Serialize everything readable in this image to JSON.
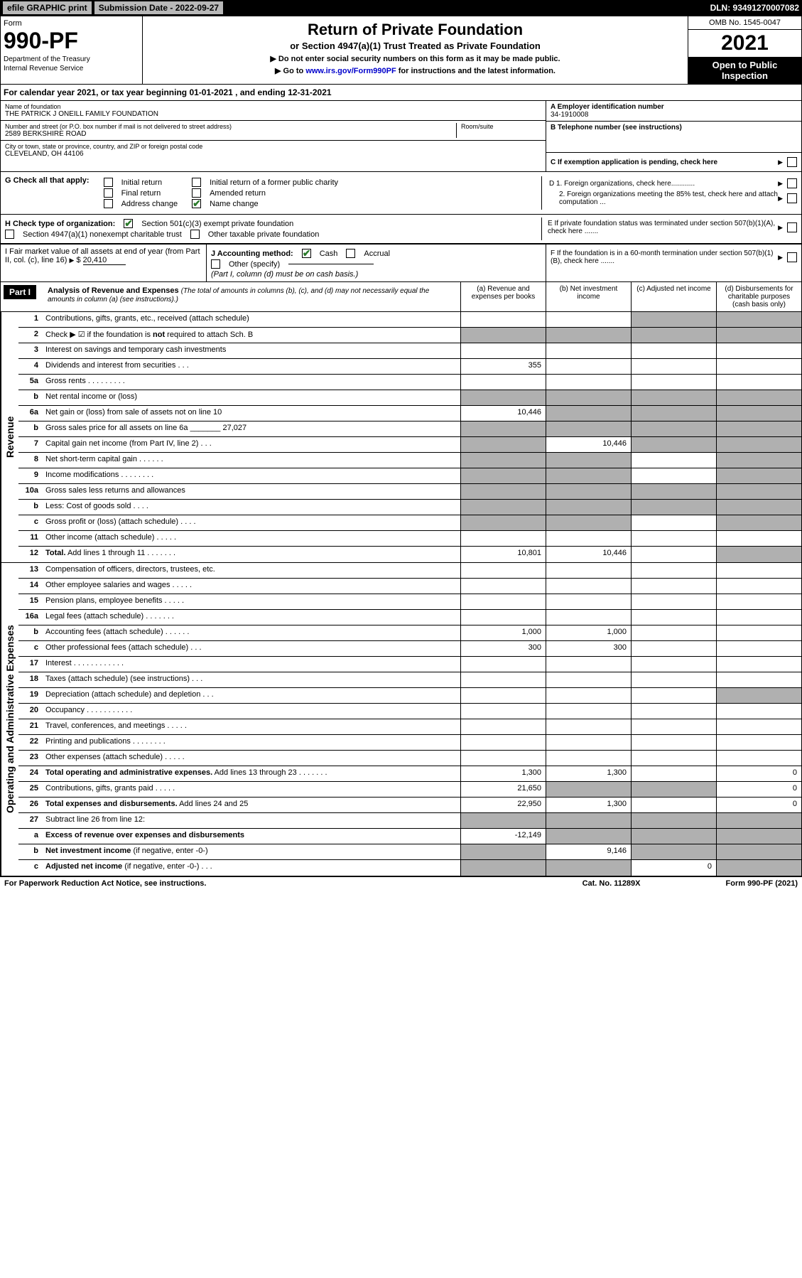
{
  "top": {
    "efile": "efile GRAPHIC print",
    "sub_label": "Submission Date - 2022-09-27",
    "dln": "DLN: 93491270007082"
  },
  "header": {
    "form_word": "Form",
    "form_num": "990-PF",
    "dept": "Department of the Treasury",
    "irs": "Internal Revenue Service",
    "title": "Return of Private Foundation",
    "subtitle": "or Section 4947(a)(1) Trust Treated as Private Foundation",
    "note1": "▶ Do not enter social security numbers on this form as it may be made public.",
    "note2_pre": "▶ Go to ",
    "note2_link": "www.irs.gov/Form990PF",
    "note2_post": " for instructions and the latest information.",
    "omb": "OMB No. 1545-0047",
    "year": "2021",
    "open": "Open to Public Inspection"
  },
  "calyear": {
    "text_pre": "For calendar year 2021, or tax year beginning ",
    "begin": "01-01-2021",
    "text_mid": " , and ending ",
    "end": "12-31-2021"
  },
  "info": {
    "name_label": "Name of foundation",
    "name": "THE PATRICK J ONEILL FAMILY FOUNDATION",
    "addr_label": "Number and street (or P.O. box number if mail is not delivered to street address)",
    "addr": "2589 BERKSHIRE ROAD",
    "room_label": "Room/suite",
    "city_label": "City or town, state or province, country, and ZIP or foreign postal code",
    "city": "CLEVELAND, OH  44106",
    "a_label": "A Employer identification number",
    "a_val": "34-1910008",
    "b_label": "B Telephone number (see instructions)",
    "c_label": "C If exemption application is pending, check here",
    "d1": "D 1. Foreign organizations, check here............",
    "d2": "2. Foreign organizations meeting the 85% test, check here and attach computation ...",
    "e_label": "E  If private foundation status was terminated under section 507(b)(1)(A), check here .......",
    "f_label": "F  If the foundation is in a 60-month termination under section 507(b)(1)(B), check here ......."
  },
  "g": {
    "label": "G Check all that apply:",
    "opts": [
      "Initial return",
      "Final return",
      "Address change",
      "Initial return of a former public charity",
      "Amended return",
      "Name change"
    ],
    "checked": [
      false,
      false,
      false,
      false,
      false,
      true
    ]
  },
  "h": {
    "label": "H Check type of organization:",
    "opt1": "Section 501(c)(3) exempt private foundation",
    "opt2": "Section 4947(a)(1) nonexempt charitable trust",
    "opt3": "Other taxable private foundation",
    "checked": [
      true,
      false,
      false
    ]
  },
  "i": {
    "label": "I Fair market value of all assets at end of year (from Part II, col. (c), line 16)",
    "val": "20,410"
  },
  "j": {
    "label": "J Accounting method:",
    "cash": "Cash",
    "accrual": "Accrual",
    "other": "Other (specify)",
    "note": "(Part I, column (d) must be on cash basis.)",
    "cash_checked": true
  },
  "part1": {
    "label": "Part I",
    "title": "Analysis of Revenue and Expenses",
    "title_note": "(The total of amounts in columns (b), (c), and (d) may not necessarily equal the amounts in column (a) (see instructions).)",
    "col_a": "(a) Revenue and expenses per books",
    "col_b": "(b) Net investment income",
    "col_c": "(c) Adjusted net income",
    "col_d": "(d) Disbursements for charitable purposes (cash basis only)"
  },
  "sections": {
    "revenue": "Revenue",
    "operating": "Operating and Administrative Expenses"
  },
  "rows": [
    {
      "n": "1",
      "d": "",
      "a": "",
      "b": "",
      "c": "",
      "sh": [
        "",
        "",
        "c",
        "d"
      ]
    },
    {
      "n": "2",
      "d": "",
      "a": "",
      "b": "",
      "c": "",
      "sh": [
        "a",
        "b",
        "c",
        "d"
      ]
    },
    {
      "n": "3",
      "d": "",
      "a": "",
      "b": "",
      "c": ""
    },
    {
      "n": "4",
      "d": "",
      "a": "355",
      "b": "",
      "c": ""
    },
    {
      "n": "5a",
      "d": "",
      "a": "",
      "b": "",
      "c": ""
    },
    {
      "n": "b",
      "d": "",
      "a": "",
      "b": "",
      "c": "",
      "sh": [
        "a",
        "b",
        "c",
        "d"
      ]
    },
    {
      "n": "6a",
      "d": "",
      "a": "10,446",
      "b": "",
      "c": "",
      "sh": [
        "",
        "b",
        "c",
        "d"
      ]
    },
    {
      "n": "b",
      "d": "",
      "a": "",
      "b": "",
      "c": "",
      "sh": [
        "a",
        "b",
        "c",
        "d"
      ]
    },
    {
      "n": "7",
      "d": "",
      "a": "",
      "b": "10,446",
      "c": "",
      "sh": [
        "a",
        "",
        "c",
        "d"
      ]
    },
    {
      "n": "8",
      "d": "",
      "a": "",
      "b": "",
      "c": "",
      "sh": [
        "a",
        "b",
        "",
        "d"
      ]
    },
    {
      "n": "9",
      "d": "",
      "a": "",
      "b": "",
      "c": "",
      "sh": [
        "a",
        "b",
        "",
        "d"
      ]
    },
    {
      "n": "10a",
      "d": "",
      "a": "",
      "b": "",
      "c": "",
      "sh": [
        "a",
        "b",
        "c",
        "d"
      ]
    },
    {
      "n": "b",
      "d": "",
      "a": "",
      "b": "",
      "c": "",
      "sh": [
        "a",
        "b",
        "c",
        "d"
      ]
    },
    {
      "n": "c",
      "d": "",
      "a": "",
      "b": "",
      "c": "",
      "sh": [
        "a",
        "b",
        "",
        "d"
      ]
    },
    {
      "n": "11",
      "d": "",
      "a": "",
      "b": "",
      "c": ""
    },
    {
      "n": "12",
      "d": "",
      "a": "10,801",
      "b": "10,446",
      "c": "",
      "bold": true,
      "sh": [
        "",
        "",
        "",
        "d"
      ]
    }
  ],
  "rows2": [
    {
      "n": "13",
      "d": "",
      "a": "",
      "b": "",
      "c": ""
    },
    {
      "n": "14",
      "d": "",
      "a": "",
      "b": "",
      "c": ""
    },
    {
      "n": "15",
      "d": "",
      "a": "",
      "b": "",
      "c": ""
    },
    {
      "n": "16a",
      "d": "",
      "a": "",
      "b": "",
      "c": ""
    },
    {
      "n": "b",
      "d": "",
      "a": "1,000",
      "b": "1,000",
      "c": ""
    },
    {
      "n": "c",
      "d": "",
      "a": "300",
      "b": "300",
      "c": ""
    },
    {
      "n": "17",
      "d": "",
      "a": "",
      "b": "",
      "c": ""
    },
    {
      "n": "18",
      "d": "",
      "a": "",
      "b": "",
      "c": ""
    },
    {
      "n": "19",
      "d": "",
      "a": "",
      "b": "",
      "c": "",
      "sh": [
        "",
        "",
        "",
        "d"
      ]
    },
    {
      "n": "20",
      "d": "",
      "a": "",
      "b": "",
      "c": ""
    },
    {
      "n": "21",
      "d": "",
      "a": "",
      "b": "",
      "c": ""
    },
    {
      "n": "22",
      "d": "",
      "a": "",
      "b": "",
      "c": ""
    },
    {
      "n": "23",
      "d": "",
      "a": "",
      "b": "",
      "c": ""
    },
    {
      "n": "24",
      "d": "0",
      "a": "1,300",
      "b": "1,300",
      "c": "",
      "bold": true
    },
    {
      "n": "25",
      "d": "0",
      "a": "21,650",
      "b": "",
      "c": "",
      "sh": [
        "",
        "b",
        "c",
        ""
      ]
    },
    {
      "n": "26",
      "d": "0",
      "a": "22,950",
      "b": "1,300",
      "c": "",
      "bold": true
    },
    {
      "n": "27",
      "d": "",
      "a": "",
      "b": "",
      "c": "",
      "sh": [
        "a",
        "b",
        "c",
        "d"
      ]
    },
    {
      "n": "a",
      "d": "",
      "a": "-12,149",
      "b": "",
      "c": "",
      "bold": true,
      "sh": [
        "",
        "b",
        "c",
        "d"
      ]
    },
    {
      "n": "b",
      "d": "",
      "a": "",
      "b": "9,146",
      "c": "",
      "bold": true,
      "sh": [
        "a",
        "",
        "c",
        "d"
      ]
    },
    {
      "n": "c",
      "d": "",
      "a": "",
      "b": "",
      "c": "0",
      "bold": true,
      "sh": [
        "a",
        "b",
        "",
        "d"
      ]
    }
  ],
  "footer": {
    "left": "For Paperwork Reduction Act Notice, see instructions.",
    "mid": "Cat. No. 11289X",
    "right": "Form 990-PF (2021)"
  },
  "colors": {
    "black": "#000000",
    "grey": "#b0b0b0",
    "link": "#0000cc",
    "check": "#2a7a2a"
  }
}
